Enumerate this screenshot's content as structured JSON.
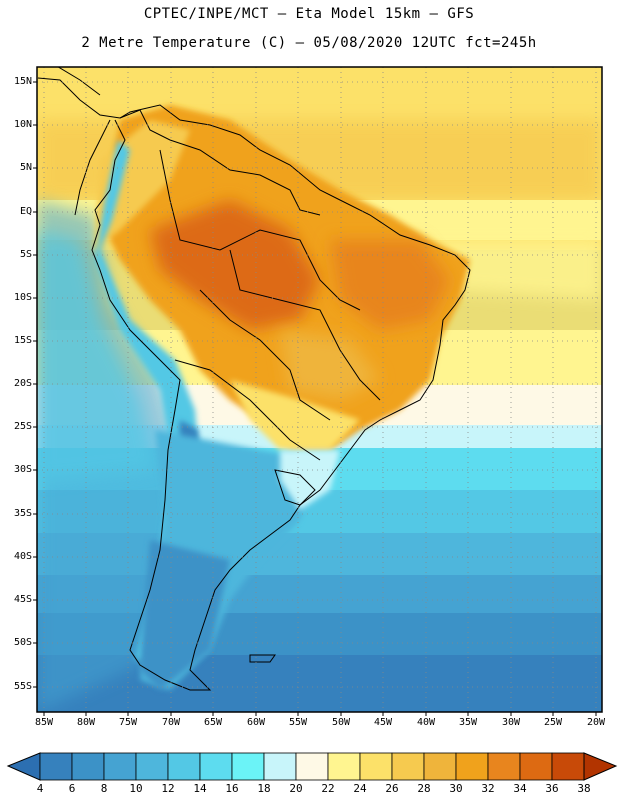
{
  "header": {
    "line1": "CPTEC/INPE/MCT –   Eta Model 15km – GFS",
    "line2": "2 Metre Temperature (C) – 05/08/2020 12UTC fct=245h"
  },
  "axes": {
    "lat_labels": [
      "15N",
      "10N",
      "5N",
      "EQ",
      "5S",
      "10S",
      "15S",
      "20S",
      "25S",
      "30S",
      "35S",
      "40S",
      "45S",
      "50S",
      "55S"
    ],
    "lon_labels": [
      "85W",
      "80W",
      "75W",
      "70W",
      "65W",
      "60W",
      "55W",
      "50W",
      "45W",
      "40W",
      "35W",
      "30W",
      "25W",
      "20W"
    ]
  },
  "legend": {
    "labels": [
      "4",
      "6",
      "8",
      "10",
      "12",
      "14",
      "16",
      "18",
      "20",
      "22",
      "24",
      "26",
      "28",
      "30",
      "32",
      "34",
      "36",
      "38"
    ],
    "colors": [
      "#2c6fb1",
      "#3681bd",
      "#3c92c7",
      "#45a3d2",
      "#4eb6dc",
      "#53c8e5",
      "#5ddcef",
      "#6bf3f7",
      "#c8f5fa",
      "#fef9e6",
      "#fff590",
      "#fce169",
      "#f6ca4f",
      "#efb43b",
      "#f0a21c",
      "#e8851e",
      "#dd6a12",
      "#c84a08",
      "#b23400"
    ]
  }
}
